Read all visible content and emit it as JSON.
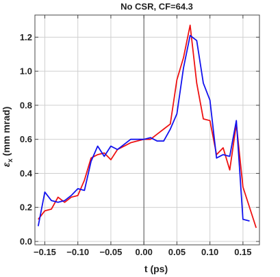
{
  "chart_data": {
    "type": "line",
    "title": "No CSR, CF=64.3",
    "xlabel": "t (ps)",
    "ylabel": "εx (mm mrad)",
    "ylabel_main": "ε",
    "ylabel_sub": "x",
    "ylabel_rest": " (mm mrad)",
    "xlim": [
      -0.165,
      0.175
    ],
    "ylim": [
      -0.02,
      1.33
    ],
    "grid": true,
    "legend": "none",
    "x_ticks": [
      -0.15,
      -0.1,
      -0.05,
      0.0,
      0.05,
      0.1,
      0.15
    ],
    "x_tick_labels": [
      "−0.15",
      "−0.10",
      "−0.05",
      "0.00",
      "0.05",
      "0.10",
      "0.15"
    ],
    "y_ticks": [
      0.0,
      0.2,
      0.4,
      0.6,
      0.8,
      1.0,
      1.2
    ],
    "y_tick_labels": [
      "0.0",
      "0.2",
      "0.4",
      "0.6",
      "0.8",
      "1.0",
      "1.2"
    ],
    "series": [
      {
        "color": "#ee1111",
        "x": [
          -0.16,
          -0.15,
          -0.14,
          -0.13,
          -0.12,
          -0.11,
          -0.1,
          -0.09,
          -0.08,
          -0.07,
          -0.06,
          -0.05,
          -0.04,
          -0.03,
          -0.02,
          -0.01,
          0.0,
          0.01,
          0.02,
          0.03,
          0.04,
          0.05,
          0.06,
          0.07,
          0.08,
          0.09,
          0.1,
          0.11,
          0.12,
          0.13,
          0.14,
          0.15,
          0.16,
          0.17
        ],
        "y": [
          0.13,
          0.18,
          0.19,
          0.26,
          0.23,
          0.26,
          0.27,
          0.36,
          0.49,
          0.51,
          0.52,
          0.48,
          0.54,
          0.56,
          0.58,
          0.59,
          0.6,
          0.6,
          0.63,
          0.66,
          0.69,
          0.95,
          1.08,
          1.27,
          0.93,
          0.72,
          0.71,
          0.51,
          0.55,
          0.42,
          0.69,
          0.32,
          0.2,
          0.08
        ]
      },
      {
        "color": "#1111ee",
        "x": [
          -0.16,
          -0.15,
          -0.14,
          -0.13,
          -0.12,
          -0.11,
          -0.1,
          -0.09,
          -0.08,
          -0.07,
          -0.06,
          -0.05,
          -0.04,
          -0.03,
          -0.02,
          -0.01,
          0.0,
          0.01,
          0.02,
          0.03,
          0.04,
          0.05,
          0.06,
          0.07,
          0.08,
          0.09,
          0.1,
          0.11,
          0.12,
          0.13,
          0.14,
          0.15,
          0.16
        ],
        "y": [
          0.09,
          0.29,
          0.24,
          0.23,
          0.24,
          0.27,
          0.31,
          0.3,
          0.47,
          0.56,
          0.5,
          0.56,
          0.54,
          0.57,
          0.6,
          0.6,
          0.6,
          0.61,
          0.59,
          0.59,
          0.66,
          0.75,
          1.02,
          1.21,
          1.18,
          0.93,
          0.83,
          0.49,
          0.51,
          0.5,
          0.71,
          0.13,
          0.12
        ]
      }
    ]
  }
}
